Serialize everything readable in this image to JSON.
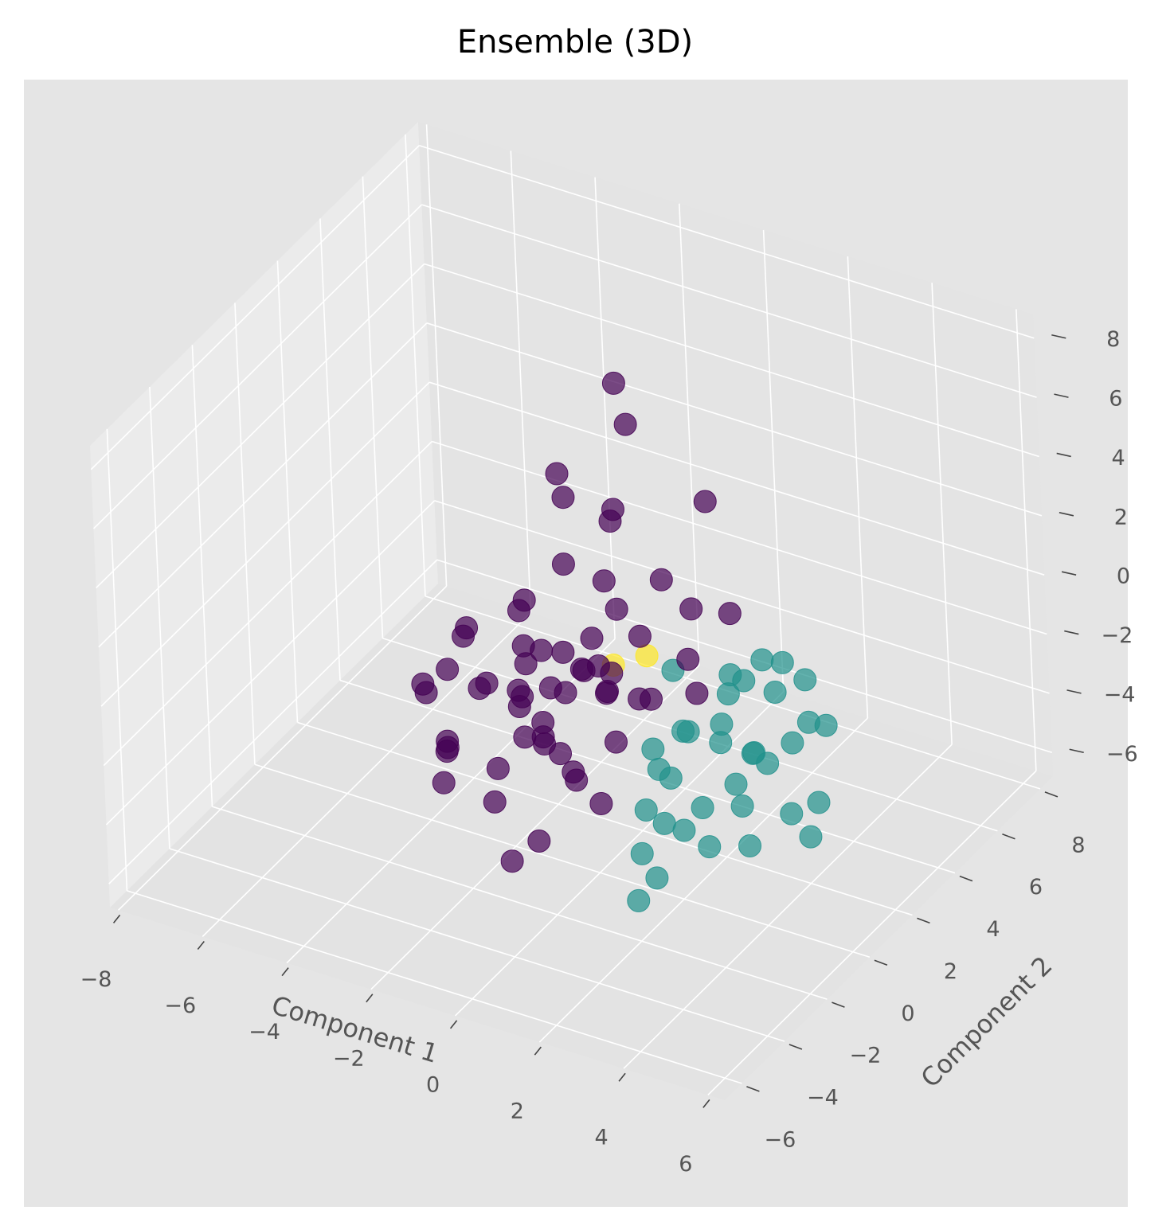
{
  "chart_data": {
    "type": "scatter3d",
    "title": "Ensemble (3D)",
    "x_label": "Component 1",
    "y_label": "Component 2",
    "xlim": [
      -8.2,
      6.4
    ],
    "ylim": [
      -6.8,
      8.6
    ],
    "zlim": [
      -6.8,
      8.8
    ],
    "xticks": [
      {
        "value": -8,
        "label": "−8"
      },
      {
        "value": -6,
        "label": "−6"
      },
      {
        "value": -4,
        "label": "−4"
      },
      {
        "value": -2,
        "label": "−2"
      },
      0,
      2,
      4,
      6
    ],
    "yticks": [
      {
        "value": -6,
        "label": "−6"
      },
      {
        "value": -4,
        "label": "−4"
      },
      {
        "value": -2,
        "label": "−2"
      },
      0,
      2,
      4,
      6,
      8
    ],
    "zticks": [
      {
        "value": -6,
        "label": "−6"
      },
      {
        "value": -4,
        "label": "−4"
      },
      {
        "value": -2,
        "label": "−2"
      },
      0,
      2,
      4,
      6,
      8
    ],
    "grid": true,
    "series": [
      {
        "color": "#fde725",
        "x": [
          0.0,
          0.6
        ],
        "y": [
          1.0,
          1.4
        ],
        "z": [
          -0.5,
          -0.2
        ]
      },
      {
        "color": "#21918c",
        "x": [
          2.5,
          2.0,
          3.0,
          1.8,
          3.4,
          2.2,
          2.8,
          1.5,
          3.8,
          2.6,
          2.0,
          3.2,
          1.2,
          4.0,
          2.4,
          3.6,
          1.0,
          2.9,
          4.4,
          2.1,
          3.0,
          1.6,
          3.5,
          2.7,
          4.2,
          1.9,
          3.3,
          2.3,
          4.8,
          2.5,
          1.4,
          3.9,
          2.8,
          5.0,
          3.1
        ],
        "y": [
          1.0,
          0.5,
          1.5,
          0.0,
          0.8,
          2.0,
          -0.5,
          1.2,
          1.8,
          -1.0,
          2.5,
          0.3,
          0.6,
          2.2,
          -1.5,
          -0.2,
          1.8,
          2.8,
          0.5,
          -2.0,
          3.0,
          -0.8,
          1.2,
          -2.5,
          2.6,
          2.2,
          -1.2,
          3.4,
          1.0,
          -3.0,
          0.0,
          -0.5,
          1.6,
          0.2,
          3.8
        ],
        "z": [
          -2.0,
          -1.5,
          -2.5,
          -2.8,
          -1.8,
          -1.2,
          -3.0,
          -2.2,
          -2.0,
          -3.5,
          -1.0,
          -2.6,
          -3.2,
          -1.5,
          -3.0,
          -2.8,
          -0.8,
          -1.4,
          -3.2,
          -3.8,
          -0.5,
          -3.4,
          -2.4,
          -4.0,
          -1.8,
          -2.5,
          -3.6,
          -1.0,
          -3.0,
          -4.5,
          -2.0,
          -3.8,
          -0.2,
          -3.5,
          -1.6
        ]
      },
      {
        "color": "#440154",
        "x": [
          -1.0,
          -0.5,
          -1.5,
          0.2,
          -2.0,
          -0.8,
          0.5,
          -1.2,
          -0.3,
          -1.8,
          0.8,
          -2.5,
          -0.6,
          0.1,
          -1.4,
          -0.9,
          1.0,
          -2.2,
          -0.2,
          -1.1,
          0.4,
          -1.6,
          -0.7,
          0.0,
          -1.3,
          1.3,
          -2.8,
          -0.4,
          -3.0,
          -3.5,
          -2.6,
          -1.9,
          -4.0,
          0.9,
          1.5,
          -0.1,
          -2.4,
          -3.2,
          -1.0,
          0.6,
          -0.5,
          -2.0,
          -3.8,
          -1.5,
          1.2,
          2.0,
          -0.8,
          -2.9,
          -4.5,
          -0.3,
          0.7,
          -1.7,
          -2.1,
          1.8,
          -3.4,
          -0.6,
          2.3,
          -1.2,
          -2.7,
          0.3
        ],
        "y": [
          0.0,
          0.5,
          -0.5,
          0.3,
          0.8,
          -0.8,
          -0.3,
          1.0,
          -1.0,
          0.2,
          0.6,
          -0.4,
          1.2,
          -1.2,
          0.4,
          -0.6,
          -0.9,
          1.1,
          0.7,
          -0.2,
          1.5,
          -1.4,
          0.1,
          0.9,
          -0.7,
          0.2,
          0.5,
          2.0,
          -1.0,
          1.0,
          -2.0,
          2.5,
          0.0,
          -1.5,
          1.8,
          -2.5,
          1.6,
          -0.5,
          3.0,
          2.2,
          -3.0,
          2.8,
          1.4,
          -1.8,
          3.2,
          2.6,
          3.5,
          -1.2,
          0.8,
          1.3,
          -2.2,
          2.0,
          0.6,
          1.0,
          -0.3,
          2.4,
          0.4,
          3.8,
          1.9,
          -0.9
        ],
        "z": [
          -1.0,
          -0.5,
          -1.5,
          -0.8,
          -1.2,
          -2.0,
          -0.3,
          -0.6,
          -2.2,
          -1.8,
          -1.0,
          -1.4,
          0.0,
          -2.5,
          -0.2,
          -1.7,
          -1.3,
          -0.9,
          -0.4,
          -2.8,
          0.3,
          -3.0,
          -1.1,
          -0.7,
          -2.3,
          -0.5,
          -2.0,
          0.5,
          -3.2,
          -0.8,
          -3.5,
          1.0,
          -2.5,
          -3.0,
          1.5,
          -4.0,
          0.2,
          -1.0,
          2.5,
          1.8,
          -4.5,
          3.0,
          -1.5,
          -3.8,
          4.0,
          1.0,
          5.5,
          -2.8,
          -3.0,
          2.0,
          -1.8,
          4.5,
          -2.0,
          0.5,
          -4.0,
          3.5,
          0.0,
          6.5,
          -0.5,
          0.8
        ]
      }
    ]
  }
}
